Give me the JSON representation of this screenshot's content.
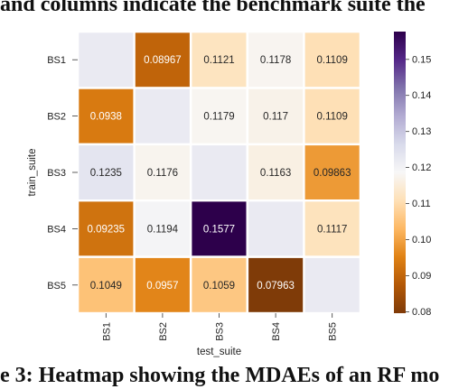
{
  "captions": {
    "top": "and columns indicate the benchmark suite the",
    "bottom": "e 3: Heatmap showing the MDAEs of an RF mo"
  },
  "chart_data": {
    "type": "heatmap",
    "xlabel": "test_suite",
    "ylabel": "train_suite",
    "x_categories": [
      "BS1",
      "BS2",
      "BS3",
      "BS4",
      "BS5"
    ],
    "y_categories": [
      "BS1",
      "BS2",
      "BS3",
      "BS4",
      "BS5"
    ],
    "values": [
      [
        null,
        0.08967,
        0.1121,
        0.1178,
        0.1109
      ],
      [
        0.0938,
        null,
        0.1179,
        0.117,
        0.1109
      ],
      [
        0.1235,
        0.1176,
        null,
        0.1163,
        0.09863
      ],
      [
        0.09235,
        0.1194,
        0.1577,
        null,
        0.1117
      ],
      [
        0.1049,
        0.0957,
        0.1059,
        0.07963,
        null
      ]
    ],
    "labels": [
      [
        "",
        "0.08967",
        "0.1121",
        "0.1178",
        "0.1109"
      ],
      [
        "0.0938",
        "",
        "0.1179",
        "0.117",
        "0.1109"
      ],
      [
        "0.1235",
        "0.1176",
        "",
        "0.1163",
        "0.09863"
      ],
      [
        "0.09235",
        "0.1194",
        "0.1577",
        "",
        "0.1117"
      ],
      [
        "0.1049",
        "0.0957",
        "0.1059",
        "0.07963",
        ""
      ]
    ],
    "colorbar": {
      "range": [
        0.0796,
        0.1577
      ],
      "ticks": [
        0.08,
        0.09,
        0.1,
        0.11,
        0.12,
        0.13,
        0.14,
        0.15
      ],
      "tick_labels": [
        "0.08",
        "0.09",
        "0.10",
        "0.11",
        "0.12",
        "0.13",
        "0.14",
        "0.15"
      ],
      "colormap": "PuOr",
      "stops": [
        "#7f3b08",
        "#b35806",
        "#e08214",
        "#fdb863",
        "#fee0b6",
        "#f7f7f7",
        "#d8daeb",
        "#b2abd2",
        "#8073ac",
        "#542788",
        "#2d004b"
      ]
    },
    "missing_color": "#eaeaf2",
    "grid": false
  }
}
